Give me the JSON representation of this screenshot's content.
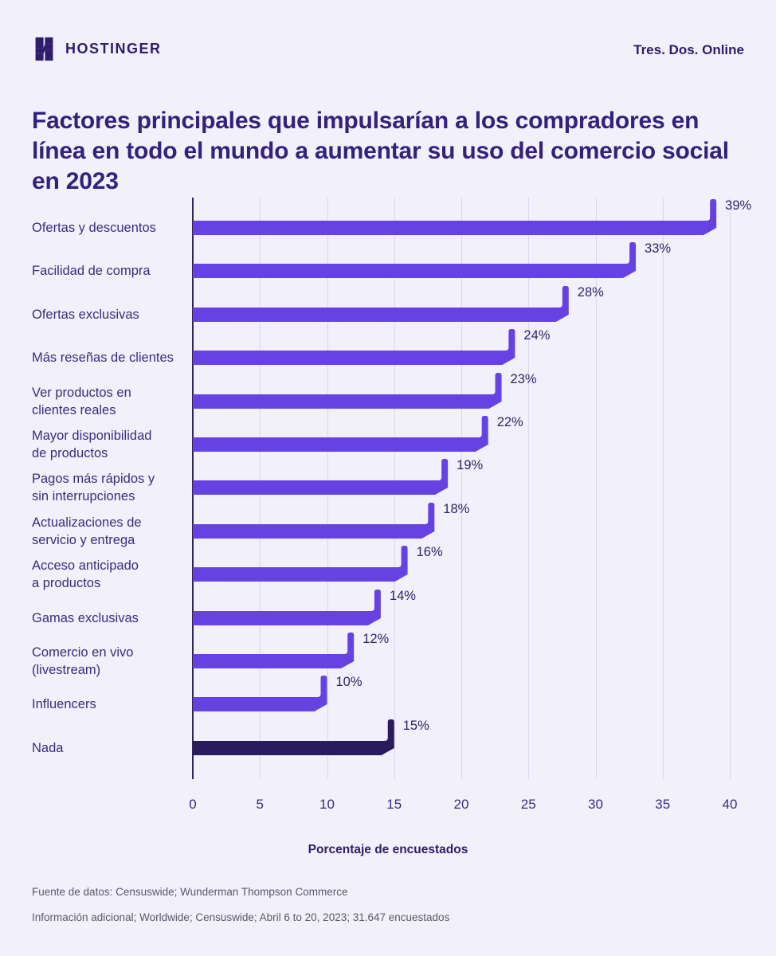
{
  "header": {
    "brand": "HOSTINGER",
    "tagline": "Tres. Dos. Online"
  },
  "title": "Factores principales que impulsarían a los compradores en línea en todo el mundo a aumentar su uso del comercio social en 2023",
  "chart_data": {
    "type": "bar",
    "orientation": "horizontal",
    "categories": [
      "Ofertas y descuentos",
      "Facilidad de compra",
      "Ofertas exclusivas",
      "Más reseñas de clientes",
      "Ver productos en\nclientes reales",
      "Mayor disponibilidad\nde productos",
      "Pagos más rápidos y\nsin interrupciones",
      "Actualizaciones de\nservicio y entrega",
      "Acceso anticipado\na productos",
      "Gamas exclusivas",
      "Comercio en vivo\n(livestream)",
      "Influencers",
      "Nada"
    ],
    "values": [
      39,
      33,
      28,
      24,
      23,
      22,
      19,
      18,
      16,
      14,
      12,
      10,
      15
    ],
    "value_labels": [
      "39%",
      "33%",
      "28%",
      "24%",
      "23%",
      "22%",
      "19%",
      "18%",
      "16%",
      "14%",
      "12%",
      "10%",
      "15%"
    ],
    "xlabel": "Porcentaje de encuestados",
    "xlim": [
      0,
      40
    ],
    "xticks": [
      0,
      5,
      10,
      15,
      20,
      25,
      30,
      35,
      40
    ],
    "grid": true,
    "legend": "none",
    "bar_color": "#6742E2",
    "highlight_color": "#2A1A5E",
    "highlight_index": 12
  },
  "footer": {
    "source": "Fuente de datos: Censuswide; Wunderman Thompson Commerce",
    "info": "Información adicional; Worldwide; Censuswide; Abril 6 to 20, 2023; 31.647 encuestados"
  },
  "colors": {
    "background": "#F2F0FA",
    "title": "#33217B",
    "brand": "#2F1C6A",
    "grid": "#DBD6F2",
    "axis": "#2F2556",
    "footnote": "#5A576E"
  }
}
